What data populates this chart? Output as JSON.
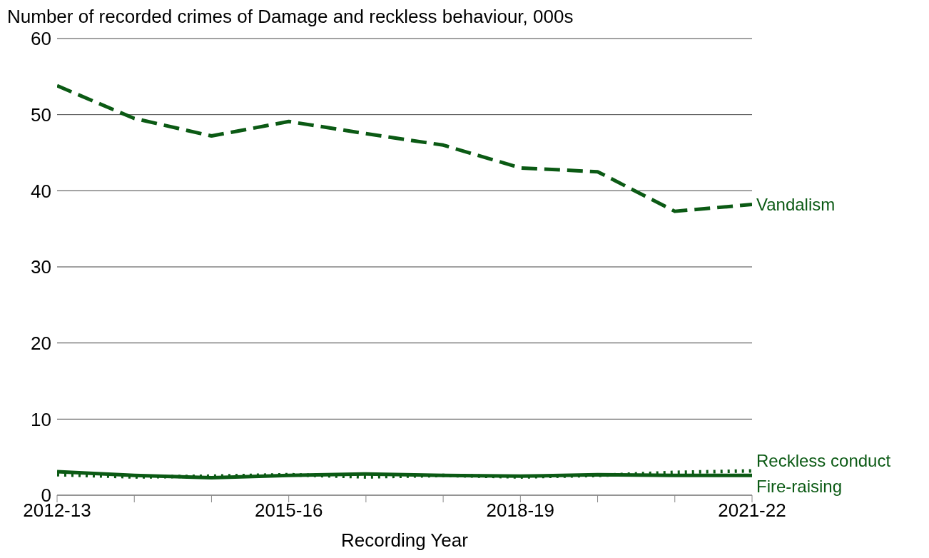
{
  "chart_data": {
    "type": "line",
    "title": "Number of recorded crimes of Damage and reckless behaviour, 000s",
    "xlabel": "Recording Year",
    "categories": [
      "2012-13",
      null,
      null,
      "2015-16",
      null,
      null,
      "2018-19",
      null,
      null,
      "2021-22"
    ],
    "series": [
      {
        "name": "Vandalism",
        "color": "#0b5a14",
        "line_style": "dashed",
        "values": [
          53.8,
          49.5,
          47.2,
          49.1,
          47.5,
          46.0,
          43.0,
          42.5,
          37.3,
          38.2
        ]
      },
      {
        "name": "Reckless conduct",
        "color": "#0b5a14",
        "line_style": "dotted",
        "values": [
          2.7,
          2.4,
          2.5,
          2.7,
          2.4,
          2.6,
          2.4,
          2.6,
          3.0,
          3.2
        ]
      },
      {
        "name": "Fire-raising",
        "color": "#0b5a14",
        "line_style": "solid",
        "values": [
          3.1,
          2.6,
          2.3,
          2.6,
          2.8,
          2.6,
          2.5,
          2.7,
          2.6,
          2.6
        ]
      }
    ],
    "ylim": [
      0,
      60
    ],
    "yticks": [
      0,
      10,
      20,
      30,
      40,
      50,
      60
    ],
    "grid": "y",
    "marker": "none"
  }
}
